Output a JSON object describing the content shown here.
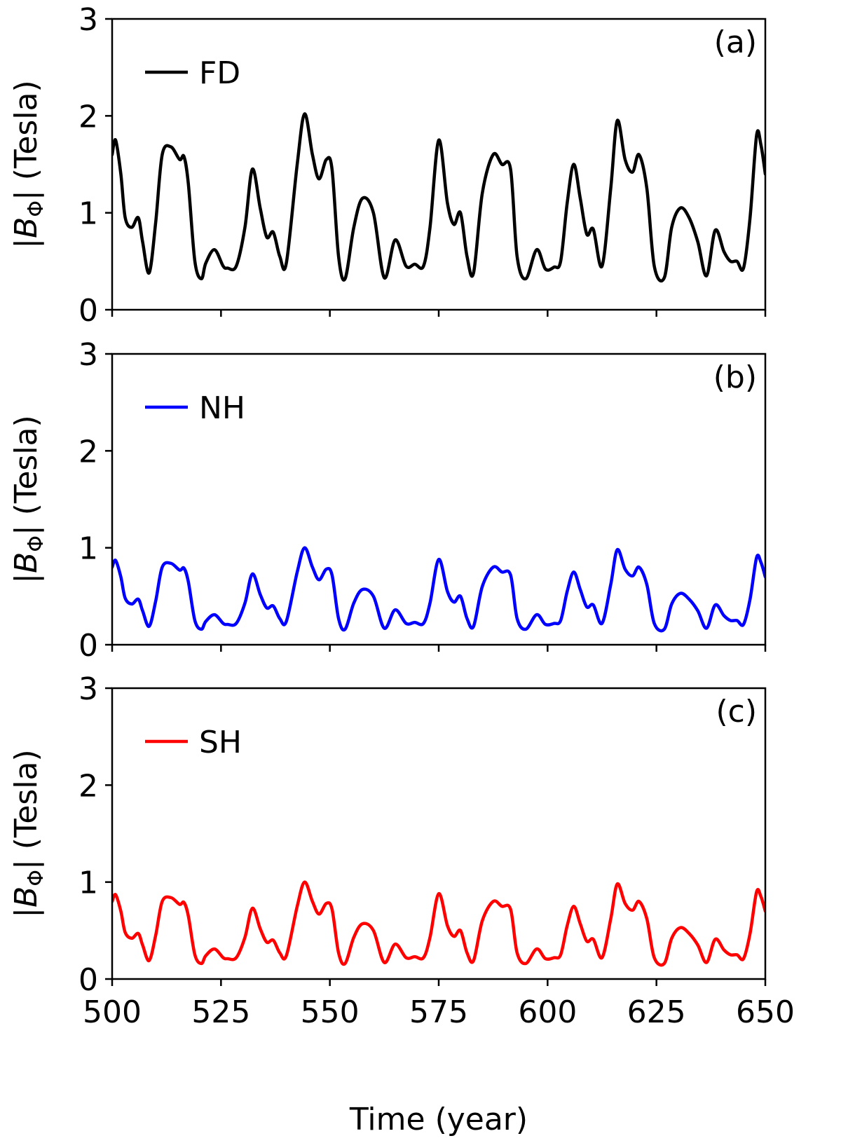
{
  "chart_data": [
    {
      "type": "line",
      "panel_label": "(a)",
      "ylabel": "|B_Φ| (Tesla)",
      "xlim": [
        500,
        650
      ],
      "ylim": [
        0,
        3
      ],
      "xticks": [
        500,
        525,
        550,
        575,
        600,
        625,
        650
      ],
      "yticks": [
        0,
        1,
        2,
        3
      ],
      "show_xtick_labels": false,
      "xlabel": "",
      "legend_position": "top-left",
      "series": [
        {
          "name": "FD",
          "color": "#000000",
          "x": [
            500,
            500.8,
            502,
            503,
            504.5,
            506,
            507,
            508.5,
            510,
            511.5,
            513.5,
            515.5,
            516.5,
            517.5,
            519,
            520.5,
            521.5,
            523.5,
            525.5,
            526.5,
            528.5,
            530.5,
            532.2,
            534,
            535.5,
            537,
            538.5,
            540,
            542.5,
            544.2,
            546,
            547.5,
            549.2,
            550.5,
            552,
            553.5,
            555.5,
            557.5,
            560,
            562.5,
            565,
            567.5,
            569.5,
            571.5,
            573,
            575,
            577,
            578.5,
            580,
            581.5,
            583,
            585,
            587.5,
            589.5,
            591.5,
            593,
            595,
            597.5,
            599.5,
            601.5,
            603,
            604.5,
            606,
            607.5,
            609,
            610.5,
            612.5,
            614.5,
            616,
            617.8,
            619.5,
            621,
            622.8,
            624.5,
            626.8,
            628.5,
            630.5,
            632.5,
            634.5,
            636.5,
            638.5,
            640.5,
            642,
            643.5,
            645,
            646.5,
            648,
            649,
            650
          ],
          "y": [
            1.6,
            1.75,
            1.4,
            0.95,
            0.85,
            0.95,
            0.7,
            0.38,
            0.9,
            1.6,
            1.68,
            1.55,
            1.58,
            1.3,
            0.5,
            0.32,
            0.48,
            0.62,
            0.45,
            0.43,
            0.45,
            0.85,
            1.45,
            1.05,
            0.75,
            0.8,
            0.55,
            0.48,
            1.5,
            2.02,
            1.6,
            1.35,
            1.55,
            1.45,
            0.55,
            0.32,
            0.85,
            1.15,
            1.0,
            0.33,
            0.72,
            0.45,
            0.47,
            0.45,
            0.85,
            1.75,
            1.1,
            0.88,
            1.0,
            0.55,
            0.38,
            1.2,
            1.6,
            1.5,
            1.45,
            0.55,
            0.32,
            0.62,
            0.42,
            0.44,
            0.5,
            1.1,
            1.5,
            1.15,
            0.78,
            0.83,
            0.45,
            1.25,
            1.95,
            1.55,
            1.42,
            1.6,
            1.25,
            0.45,
            0.33,
            0.85,
            1.05,
            0.95,
            0.7,
            0.35,
            0.82,
            0.6,
            0.5,
            0.5,
            0.43,
            0.95,
            1.8,
            1.7,
            1.4
          ]
        }
      ]
    },
    {
      "type": "line",
      "panel_label": "(b)",
      "ylabel": "|B_Φ| (Tesla)",
      "xlim": [
        500,
        650
      ],
      "ylim": [
        0,
        3
      ],
      "xticks": [
        500,
        525,
        550,
        575,
        600,
        625,
        650
      ],
      "yticks": [
        0,
        1,
        2,
        3
      ],
      "show_xtick_labels": false,
      "xlabel": "",
      "legend_position": "top-left",
      "series": [
        {
          "name": "NH",
          "color": "#0000ff",
          "x": [
            500,
            500.8,
            502,
            503,
            504.5,
            506,
            507,
            508.5,
            510,
            511.5,
            513.5,
            515.5,
            516.5,
            517.5,
            519,
            520.5,
            521.5,
            523.5,
            525.5,
            526.5,
            528.5,
            530.5,
            532.2,
            534,
            535.5,
            537,
            538.5,
            540,
            542.5,
            544.2,
            546,
            547.5,
            549.2,
            550.5,
            552,
            553.5,
            555.5,
            557.5,
            560,
            562.5,
            565,
            567.5,
            569.5,
            571.5,
            573,
            575,
            577,
            578.5,
            580,
            581.5,
            583,
            585,
            587.5,
            589.5,
            591.5,
            593,
            595,
            597.5,
            599.5,
            601.5,
            603,
            604.5,
            606,
            607.5,
            609,
            610.5,
            612.5,
            614.5,
            616,
            617.8,
            619.5,
            621,
            622.8,
            624.5,
            626.8,
            628.5,
            630.5,
            632.5,
            634.5,
            636.5,
            638.5,
            640.5,
            642,
            643.5,
            645,
            646.5,
            648,
            649,
            650
          ],
          "y": [
            0.8,
            0.87,
            0.7,
            0.48,
            0.42,
            0.47,
            0.35,
            0.19,
            0.45,
            0.8,
            0.84,
            0.77,
            0.79,
            0.65,
            0.25,
            0.16,
            0.24,
            0.31,
            0.22,
            0.21,
            0.22,
            0.43,
            0.73,
            0.52,
            0.38,
            0.4,
            0.27,
            0.24,
            0.75,
            1.0,
            0.8,
            0.67,
            0.78,
            0.72,
            0.27,
            0.16,
            0.43,
            0.57,
            0.5,
            0.17,
            0.36,
            0.22,
            0.23,
            0.22,
            0.43,
            0.88,
            0.55,
            0.44,
            0.5,
            0.27,
            0.19,
            0.6,
            0.8,
            0.75,
            0.72,
            0.27,
            0.16,
            0.31,
            0.21,
            0.22,
            0.25,
            0.55,
            0.75,
            0.57,
            0.39,
            0.41,
            0.22,
            0.62,
            0.98,
            0.78,
            0.71,
            0.8,
            0.62,
            0.22,
            0.16,
            0.42,
            0.53,
            0.47,
            0.35,
            0.17,
            0.41,
            0.3,
            0.25,
            0.25,
            0.21,
            0.47,
            0.9,
            0.85,
            0.7
          ]
        }
      ]
    },
    {
      "type": "line",
      "panel_label": "(c)",
      "ylabel": "|B_Φ| (Tesla)",
      "xlim": [
        500,
        650
      ],
      "ylim": [
        0,
        3
      ],
      "xticks": [
        500,
        525,
        550,
        575,
        600,
        625,
        650
      ],
      "yticks": [
        0,
        1,
        2,
        3
      ],
      "show_xtick_labels": true,
      "xlabel": "Time (year)",
      "legend_position": "top-left",
      "series": [
        {
          "name": "SH",
          "color": "#ff0000",
          "x": [
            500,
            500.8,
            502,
            503,
            504.5,
            506,
            507,
            508.5,
            510,
            511.5,
            513.5,
            515.5,
            516.5,
            517.5,
            519,
            520.5,
            521.5,
            523.5,
            525.5,
            526.5,
            528.5,
            530.5,
            532.2,
            534,
            535.5,
            537,
            538.5,
            540,
            542.5,
            544.2,
            546,
            547.5,
            549.2,
            550.5,
            552,
            553.5,
            555.5,
            557.5,
            560,
            562.5,
            565,
            567.5,
            569.5,
            571.5,
            573,
            575,
            577,
            578.5,
            580,
            581.5,
            583,
            585,
            587.5,
            589.5,
            591.5,
            593,
            595,
            597.5,
            599.5,
            601.5,
            603,
            604.5,
            606,
            607.5,
            609,
            610.5,
            612.5,
            614.5,
            616,
            617.8,
            619.5,
            621,
            622.8,
            624.5,
            626.8,
            628.5,
            630.5,
            632.5,
            634.5,
            636.5,
            638.5,
            640.5,
            642,
            643.5,
            645,
            646.5,
            648,
            649,
            650
          ],
          "y": [
            0.8,
            0.87,
            0.7,
            0.48,
            0.42,
            0.47,
            0.35,
            0.19,
            0.45,
            0.8,
            0.84,
            0.77,
            0.79,
            0.65,
            0.25,
            0.16,
            0.24,
            0.31,
            0.22,
            0.21,
            0.22,
            0.43,
            0.73,
            0.52,
            0.38,
            0.4,
            0.27,
            0.24,
            0.75,
            1.0,
            0.8,
            0.67,
            0.78,
            0.72,
            0.27,
            0.16,
            0.43,
            0.57,
            0.5,
            0.17,
            0.36,
            0.22,
            0.23,
            0.22,
            0.43,
            0.88,
            0.55,
            0.44,
            0.5,
            0.27,
            0.19,
            0.6,
            0.8,
            0.75,
            0.72,
            0.27,
            0.16,
            0.31,
            0.21,
            0.22,
            0.25,
            0.55,
            0.75,
            0.57,
            0.39,
            0.41,
            0.22,
            0.62,
            0.98,
            0.78,
            0.71,
            0.8,
            0.62,
            0.22,
            0.16,
            0.42,
            0.53,
            0.47,
            0.35,
            0.17,
            0.41,
            0.3,
            0.25,
            0.25,
            0.21,
            0.47,
            0.9,
            0.85,
            0.7
          ]
        }
      ]
    }
  ]
}
